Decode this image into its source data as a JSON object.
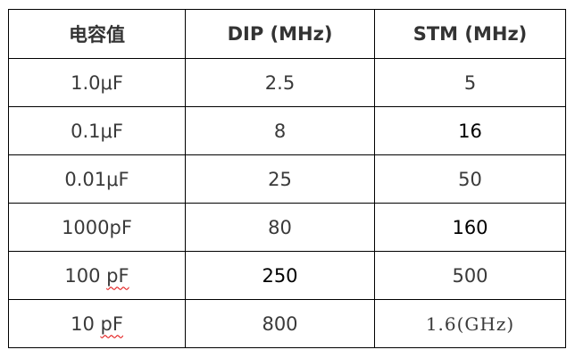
{
  "headers": [
    "电容值",
    "DIP (MHz)",
    "STM (MHz)"
  ],
  "rows": [
    {
      "cap_value": "1.0μF",
      "cap_unit": "",
      "dip": "2.5",
      "stm": "5"
    },
    {
      "cap_value": "0.1μF",
      "cap_unit": "",
      "dip": "8",
      "stm": "16"
    },
    {
      "cap_value": "0.01μF",
      "cap_unit": "",
      "dip": "25",
      "stm": "50"
    },
    {
      "cap_value": "1000pF",
      "cap_unit": "",
      "dip": "80",
      "stm": "160"
    },
    {
      "cap_value": "100 ",
      "cap_unit": "pF",
      "dip": "250",
      "stm": "500"
    },
    {
      "cap_value": "10 ",
      "cap_unit": "pF",
      "dip": "800",
      "stm": "1.6(GHz)"
    }
  ],
  "colors": {
    "text": "#3a3a3a",
    "emphasis_text": "#000000",
    "border": "#000000",
    "spellcheck_underline": "#e00000"
  }
}
